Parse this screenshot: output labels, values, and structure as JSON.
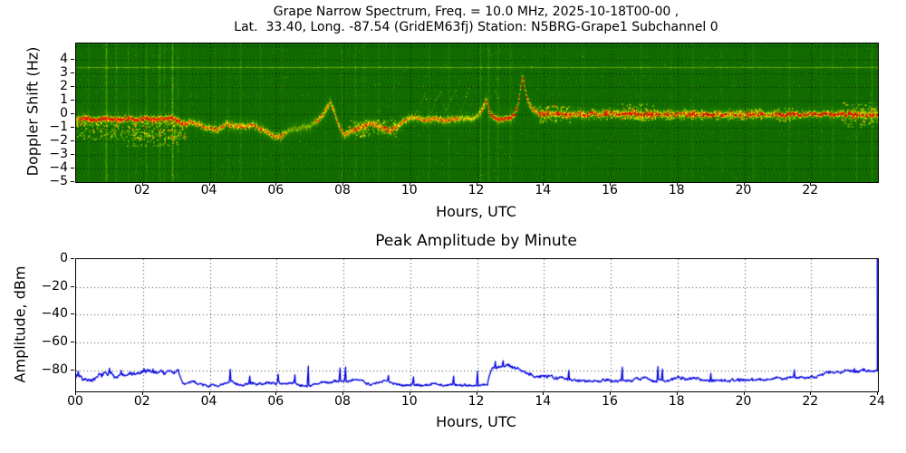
{
  "header": {
    "title_line1": "Grape Narrow Spectrum, Freq. = 10.0 MHz, 2025-10-18T00-00 ,",
    "title_line2": "Lat.  33.40, Long. -87.54 (GridEM63fj) Station: N5BRG-Grape1 Subchannel 0"
  },
  "chart_data": [
    {
      "type": "heatmap",
      "name": "doppler-spectrogram",
      "title_lines": [
        "Grape Narrow Spectrum, Freq. = 10.0 MHz, 2025-10-18T00-00 ,",
        "Lat.  33.40, Long. -87.54 (GridEM63fj) Station: N5BRG-Grape1 Subchannel 0"
      ],
      "xlabel": "Hours, UTC",
      "ylabel": "Doppler Shift (Hz)",
      "xlim": [
        0,
        24
      ],
      "ylim": [
        -5,
        5.2
      ],
      "x_ticks": [
        {
          "value": 2,
          "label": "02"
        },
        {
          "value": 4,
          "label": "04"
        },
        {
          "value": 6,
          "label": "06"
        },
        {
          "value": 8,
          "label": "08"
        },
        {
          "value": 10,
          "label": "10"
        },
        {
          "value": 12,
          "label": "12"
        },
        {
          "value": 14,
          "label": "14"
        },
        {
          "value": 16,
          "label": "16"
        },
        {
          "value": 18,
          "label": "18"
        },
        {
          "value": 20,
          "label": "20"
        },
        {
          "value": 22,
          "label": "22"
        }
      ],
      "y_ticks": [
        {
          "value": 4,
          "label": "4"
        },
        {
          "value": 3,
          "label": "3"
        },
        {
          "value": 2,
          "label": "2"
        },
        {
          "value": 1,
          "label": "1"
        },
        {
          "value": 0,
          "label": "0"
        },
        {
          "value": -1,
          "label": "−1"
        },
        {
          "value": -2,
          "label": "−2"
        },
        {
          "value": -3,
          "label": "−3"
        },
        {
          "value": -4,
          "label": "−4"
        },
        {
          "value": -5,
          "label": "−5"
        }
      ],
      "grid": {
        "style": "dotted",
        "x_interval_hours": 2,
        "y_interval_hz": 1,
        "color": "#000000"
      },
      "colormap_stops": [
        [
          0.0,
          "#0a6400"
        ],
        [
          0.18,
          "#156f00"
        ],
        [
          0.35,
          "#2f8a00"
        ],
        [
          0.5,
          "#5ea800"
        ],
        [
          0.62,
          "#9cc400"
        ],
        [
          0.72,
          "#d8dc00"
        ],
        [
          0.82,
          "#f8f000"
        ],
        [
          0.9,
          "#ffa800"
        ],
        [
          1.0,
          "#e41800"
        ]
      ],
      "horizontal_line_hz": 3.5,
      "carrier_track": [
        [
          0,
          -0.35
        ],
        [
          0.3,
          -0.3
        ],
        [
          0.6,
          -0.38
        ],
        [
          0.9,
          -0.3
        ],
        [
          1.2,
          -0.36
        ],
        [
          1.5,
          -0.28
        ],
        [
          1.8,
          -0.34
        ],
        [
          2.1,
          -0.3
        ],
        [
          2.4,
          -0.34
        ],
        [
          2.7,
          -0.28
        ],
        [
          2.95,
          -0.3
        ],
        [
          3.15,
          -0.75
        ],
        [
          3.45,
          -0.55
        ],
        [
          3.8,
          -0.85
        ],
        [
          4.2,
          -1.15
        ],
        [
          4.5,
          -0.7
        ],
        [
          4.9,
          -0.9
        ],
        [
          5.3,
          -0.8
        ],
        [
          5.6,
          -1.15
        ],
        [
          5.9,
          -1.55
        ],
        [
          6.1,
          -1.65
        ],
        [
          6.35,
          -1.15
        ],
        [
          6.7,
          -0.95
        ],
        [
          7.0,
          -0.8
        ],
        [
          7.25,
          -0.35
        ],
        [
          7.45,
          0.25
        ],
        [
          7.6,
          0.9
        ],
        [
          7.72,
          0.2
        ],
        [
          7.85,
          -0.75
        ],
        [
          8.0,
          -1.55
        ],
        [
          8.2,
          -1.25
        ],
        [
          8.5,
          -0.95
        ],
        [
          8.8,
          -0.65
        ],
        [
          9.1,
          -0.9
        ],
        [
          9.35,
          -1.15
        ],
        [
          9.6,
          -0.95
        ],
        [
          9.85,
          -0.4
        ],
        [
          10.1,
          -0.2
        ],
        [
          10.4,
          -0.4
        ],
        [
          10.7,
          -0.3
        ],
        [
          11.0,
          -0.4
        ],
        [
          11.3,
          -0.35
        ],
        [
          11.6,
          -0.3
        ],
        [
          11.9,
          -0.25
        ],
        [
          12.15,
          0.35
        ],
        [
          12.27,
          1.15
        ],
        [
          12.38,
          0.05
        ],
        [
          12.55,
          -0.35
        ],
        [
          12.75,
          -0.3
        ],
        [
          12.95,
          -0.35
        ],
        [
          13.1,
          -0.1
        ],
        [
          13.22,
          0.7
        ],
        [
          13.35,
          2.9
        ],
        [
          13.5,
          1.1
        ],
        [
          13.65,
          0.35
        ],
        [
          13.85,
          0.1
        ],
        [
          14.3,
          0.02
        ],
        [
          15,
          0
        ],
        [
          16,
          0.05
        ],
        [
          17,
          0
        ],
        [
          18,
          0.02
        ],
        [
          19,
          0
        ],
        [
          20,
          0.02
        ],
        [
          21,
          0
        ],
        [
          22,
          0.02
        ],
        [
          23,
          0
        ],
        [
          24,
          0
        ]
      ],
      "carrier_faint_spans": [
        [
          6.25,
          7.15,
          0.45
        ],
        [
          9.95,
          10.35,
          0.8
        ],
        [
          11.5,
          12.1,
          0.65
        ]
      ],
      "carrier_red_segments": [
        [
          0.12,
          3.02,
          0.55
        ],
        [
          12.3,
          13.5,
          0.6
        ],
        [
          14.0,
          14.15,
          0.3
        ],
        [
          18.9,
          19.05,
          0.25
        ],
        [
          20.9,
          23.4,
          0.42
        ]
      ],
      "overhead_arcs": [
        [
          [
            10.15,
            0.0
          ],
          [
            10.3,
            0.9
          ],
          [
            10.45,
            1.5
          ],
          [
            10.55,
            0.3
          ]
        ],
        [
          [
            10.6,
            0.1
          ],
          [
            10.75,
            1.0
          ],
          [
            10.9,
            1.6
          ],
          [
            11.0,
            0.4
          ]
        ],
        [
          [
            11.05,
            0.1
          ],
          [
            11.2,
            1.1
          ],
          [
            11.35,
            1.8
          ],
          [
            11.45,
            0.3
          ]
        ],
        [
          [
            11.5,
            0.1
          ],
          [
            11.65,
            1.3
          ],
          [
            11.75,
            2.0
          ]
        ],
        [
          [
            12.45,
            2.3
          ],
          [
            12.6,
            1.2
          ],
          [
            12.7,
            0.3
          ]
        ]
      ],
      "vertical_streaks": [
        [
          0.35,
          0.18
        ],
        [
          0.9,
          0.45
        ],
        [
          1.18,
          0.22
        ],
        [
          1.55,
          0.18
        ],
        [
          1.8,
          0.15
        ],
        [
          2.1,
          0.2
        ],
        [
          2.5,
          0.28
        ],
        [
          2.62,
          0.2
        ],
        [
          2.87,
          0.5
        ],
        [
          3.05,
          0.18
        ],
        [
          3.35,
          0.15
        ],
        [
          4.15,
          0.12
        ],
        [
          4.55,
          0.15
        ],
        [
          4.9,
          0.2
        ],
        [
          5.5,
          0.15
        ],
        [
          6.15,
          0.12
        ],
        [
          7.45,
          0.12
        ],
        [
          7.95,
          0.18
        ],
        [
          8.35,
          0.22
        ],
        [
          8.6,
          0.18
        ],
        [
          9.05,
          0.15
        ],
        [
          9.5,
          0.12
        ],
        [
          10.55,
          0.15
        ],
        [
          11.15,
          0.18
        ],
        [
          12.1,
          0.25
        ],
        [
          12.35,
          0.3
        ],
        [
          12.6,
          0.2
        ],
        [
          13.0,
          0.18
        ],
        [
          14.4,
          0.12
        ],
        [
          15.15,
          0.15
        ],
        [
          16.0,
          0.12
        ],
        [
          16.9,
          0.15
        ],
        [
          17.8,
          0.12
        ],
        [
          18.45,
          0.15
        ],
        [
          19.3,
          0.1
        ],
        [
          20.25,
          0.15
        ],
        [
          21.35,
          0.18
        ],
        [
          22.3,
          0.12
        ],
        [
          22.65,
          0.15
        ],
        [
          23.35,
          0.2
        ],
        [
          23.8,
          0.25
        ]
      ],
      "fuzz_regions": [
        [
          0.0,
          3.3,
          -1.8,
          -0.3,
          0.5
        ],
        [
          1.5,
          3.1,
          -2.3,
          -1.0,
          0.3
        ],
        [
          8.1,
          9.6,
          -1.6,
          -0.4,
          0.3
        ],
        [
          13.8,
          14.8,
          -0.6,
          0.7,
          0.45
        ],
        [
          15.0,
          20.5,
          -0.35,
          0.45,
          0.25
        ],
        [
          16.3,
          17.3,
          -0.4,
          0.8,
          0.4
        ],
        [
          20.9,
          21.5,
          -0.5,
          0.5,
          0.3
        ],
        [
          22.9,
          24.0,
          -0.9,
          0.9,
          0.55
        ]
      ],
      "early_stripe_hours": [
        0,
        3.3
      ],
      "noise_seed": 20251018
    },
    {
      "type": "line",
      "name": "peak-amplitude",
      "title": "Peak Amplitude by Minute",
      "xlabel": "Hours, UTC",
      "ylabel": "Amplitude, dBm",
      "xlim": [
        0,
        24
      ],
      "ylim": [
        -95,
        0
      ],
      "x_ticks": [
        {
          "value": 0,
          "label": "00"
        },
        {
          "value": 2,
          "label": "02"
        },
        {
          "value": 4,
          "label": "04"
        },
        {
          "value": 6,
          "label": "06"
        },
        {
          "value": 8,
          "label": "08"
        },
        {
          "value": 10,
          "label": "10"
        },
        {
          "value": 12,
          "label": "12"
        },
        {
          "value": 14,
          "label": "14"
        },
        {
          "value": 16,
          "label": "16"
        },
        {
          "value": 18,
          "label": "18"
        },
        {
          "value": 20,
          "label": "20"
        },
        {
          "value": 22,
          "label": "22"
        },
        {
          "value": 24,
          "label": "24"
        }
      ],
      "y_ticks": [
        {
          "value": 0,
          "label": "0"
        },
        {
          "value": -20,
          "label": "−20"
        },
        {
          "value": -40,
          "label": "−40"
        },
        {
          "value": -60,
          "label": "−60"
        },
        {
          "value": -80,
          "label": "−80"
        }
      ],
      "grid": {
        "style": "dotted",
        "x_interval_hours": 2,
        "y_interval_dbm": 20,
        "color": "#000000"
      },
      "line_color": "#0000e0",
      "samples_per_hour": 60,
      "segments": [
        [
          0.0,
          3.08,
          -83.5,
          -83.0,
          2.3
        ],
        [
          3.08,
          3.2,
          -83.0,
          -90.0,
          0.5
        ],
        [
          3.2,
          8.2,
          -89.8,
          -88.8,
          1.4
        ],
        [
          8.2,
          12.33,
          -88.6,
          -89.0,
          1.3
        ],
        [
          12.33,
          12.48,
          -86.0,
          -75.5,
          1.0
        ],
        [
          12.48,
          13.15,
          -76.0,
          -79.0,
          1.9
        ],
        [
          13.15,
          14.4,
          -80.0,
          -84.0,
          1.6
        ],
        [
          14.4,
          19.5,
          -85.3,
          -85.8,
          1.5
        ],
        [
          19.5,
          23.92,
          -85.3,
          -81.3,
          1.5
        ],
        [
          23.92,
          24.0,
          -81.0,
          -81.0,
          0.8
        ]
      ],
      "spikes": [
        [
          0.07,
          -80.5
        ],
        [
          1.0,
          -78.3
        ],
        [
          1.35,
          -80
        ],
        [
          2.3,
          -78.8
        ],
        [
          2.75,
          -80
        ],
        [
          4.62,
          -79.2
        ],
        [
          5.2,
          -84
        ],
        [
          6.05,
          -82.5
        ],
        [
          6.55,
          -83
        ],
        [
          6.95,
          -76.8
        ],
        [
          7.9,
          -78.2
        ],
        [
          8.07,
          -77.5
        ],
        [
          9.35,
          -83.5
        ],
        [
          10.1,
          -84.5
        ],
        [
          11.3,
          -84
        ],
        [
          12.02,
          -80.5
        ],
        [
          12.55,
          -73.5
        ],
        [
          12.78,
          -73
        ],
        [
          14.75,
          -80
        ],
        [
          16.35,
          -77.6
        ],
        [
          17.42,
          -77.2
        ],
        [
          17.55,
          -79
        ],
        [
          19.0,
          -82
        ],
        [
          21.5,
          -79.5
        ],
        [
          22.6,
          -81
        ],
        [
          23.3,
          -78.6
        ]
      ],
      "end_spike": {
        "hour": 23.98,
        "value": 0
      },
      "noise_seed": 7
    }
  ]
}
